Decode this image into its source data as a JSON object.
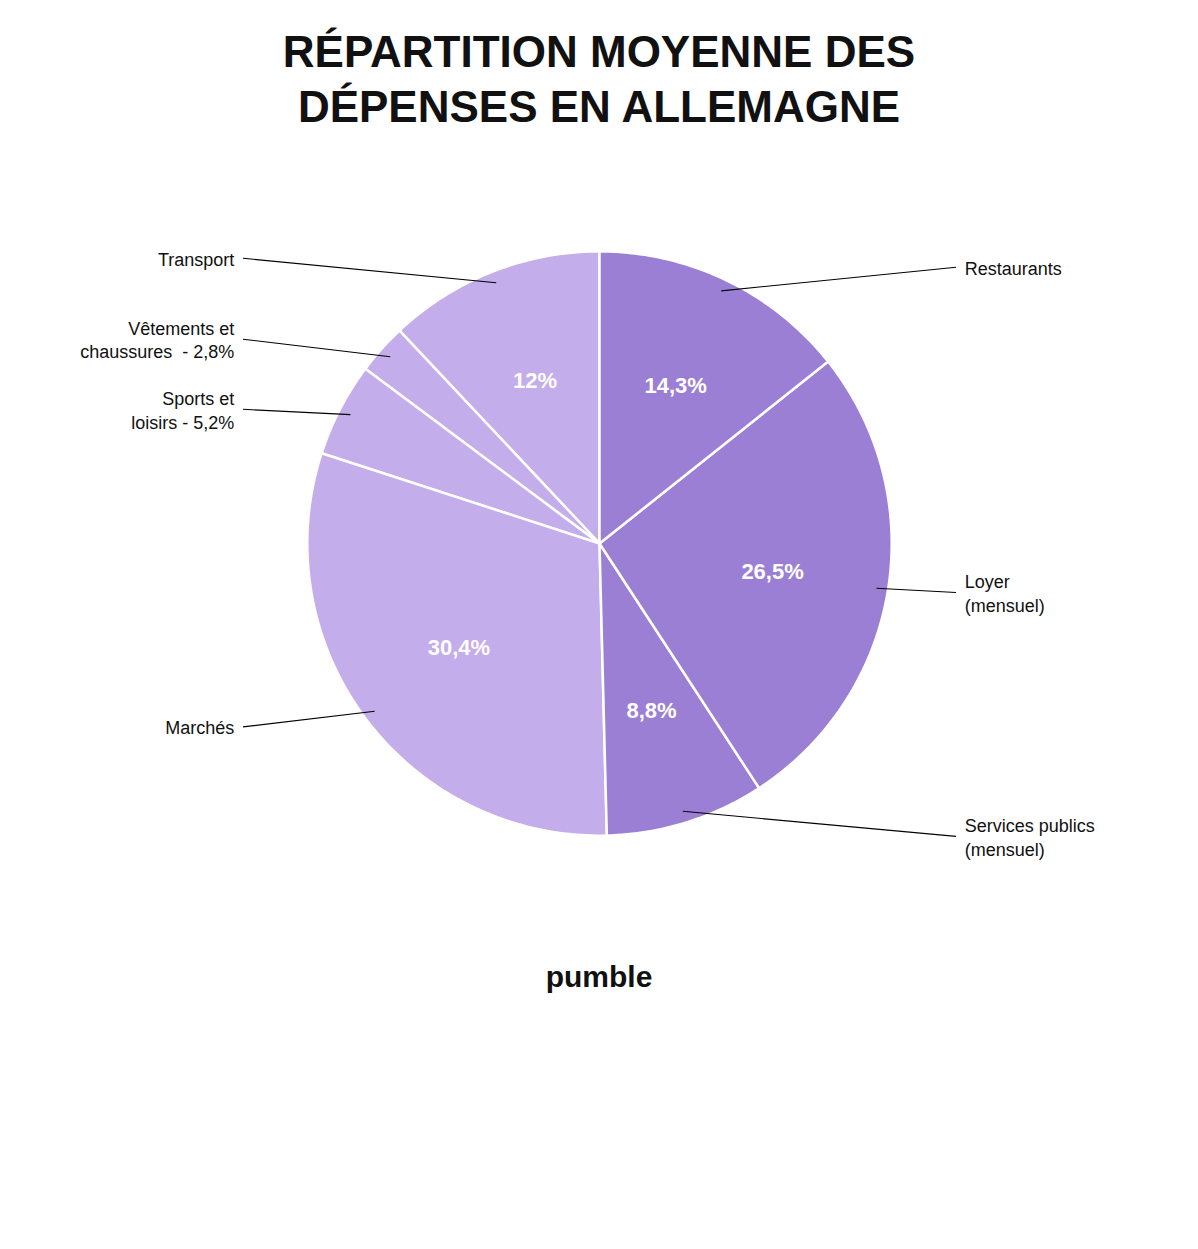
{
  "chart_data": {
    "type": "pie",
    "title": "RÉPARTITION MOYENNE DES\nDÉPENSES EN ALLEMAGNE",
    "categories": [
      "Transport",
      "Vêtements et\nchaussures  - 2,8%",
      "Sports et\nloisirs - 5,2%",
      "Marchés",
      "Services publics\n(mensuel)",
      "Loyer\n(mensuel)",
      "Restaurants"
    ],
    "values": [
      12.0,
      2.8,
      5.2,
      30.4,
      8.8,
      26.5,
      14.3
    ],
    "value_labels": [
      "12%",
      null,
      null,
      "30,4%",
      "8,8%",
      "26,5%",
      "14,3%"
    ],
    "data_labels": true,
    "colors": [
      "#C4ADEB",
      "#C4ADEB",
      "#C4ADEB",
      "#C4ADEB",
      "#9B7FD4",
      "#9B7FD4",
      "#9B7FD4"
    ],
    "annotations": [
      "pumble"
    ]
  }
}
